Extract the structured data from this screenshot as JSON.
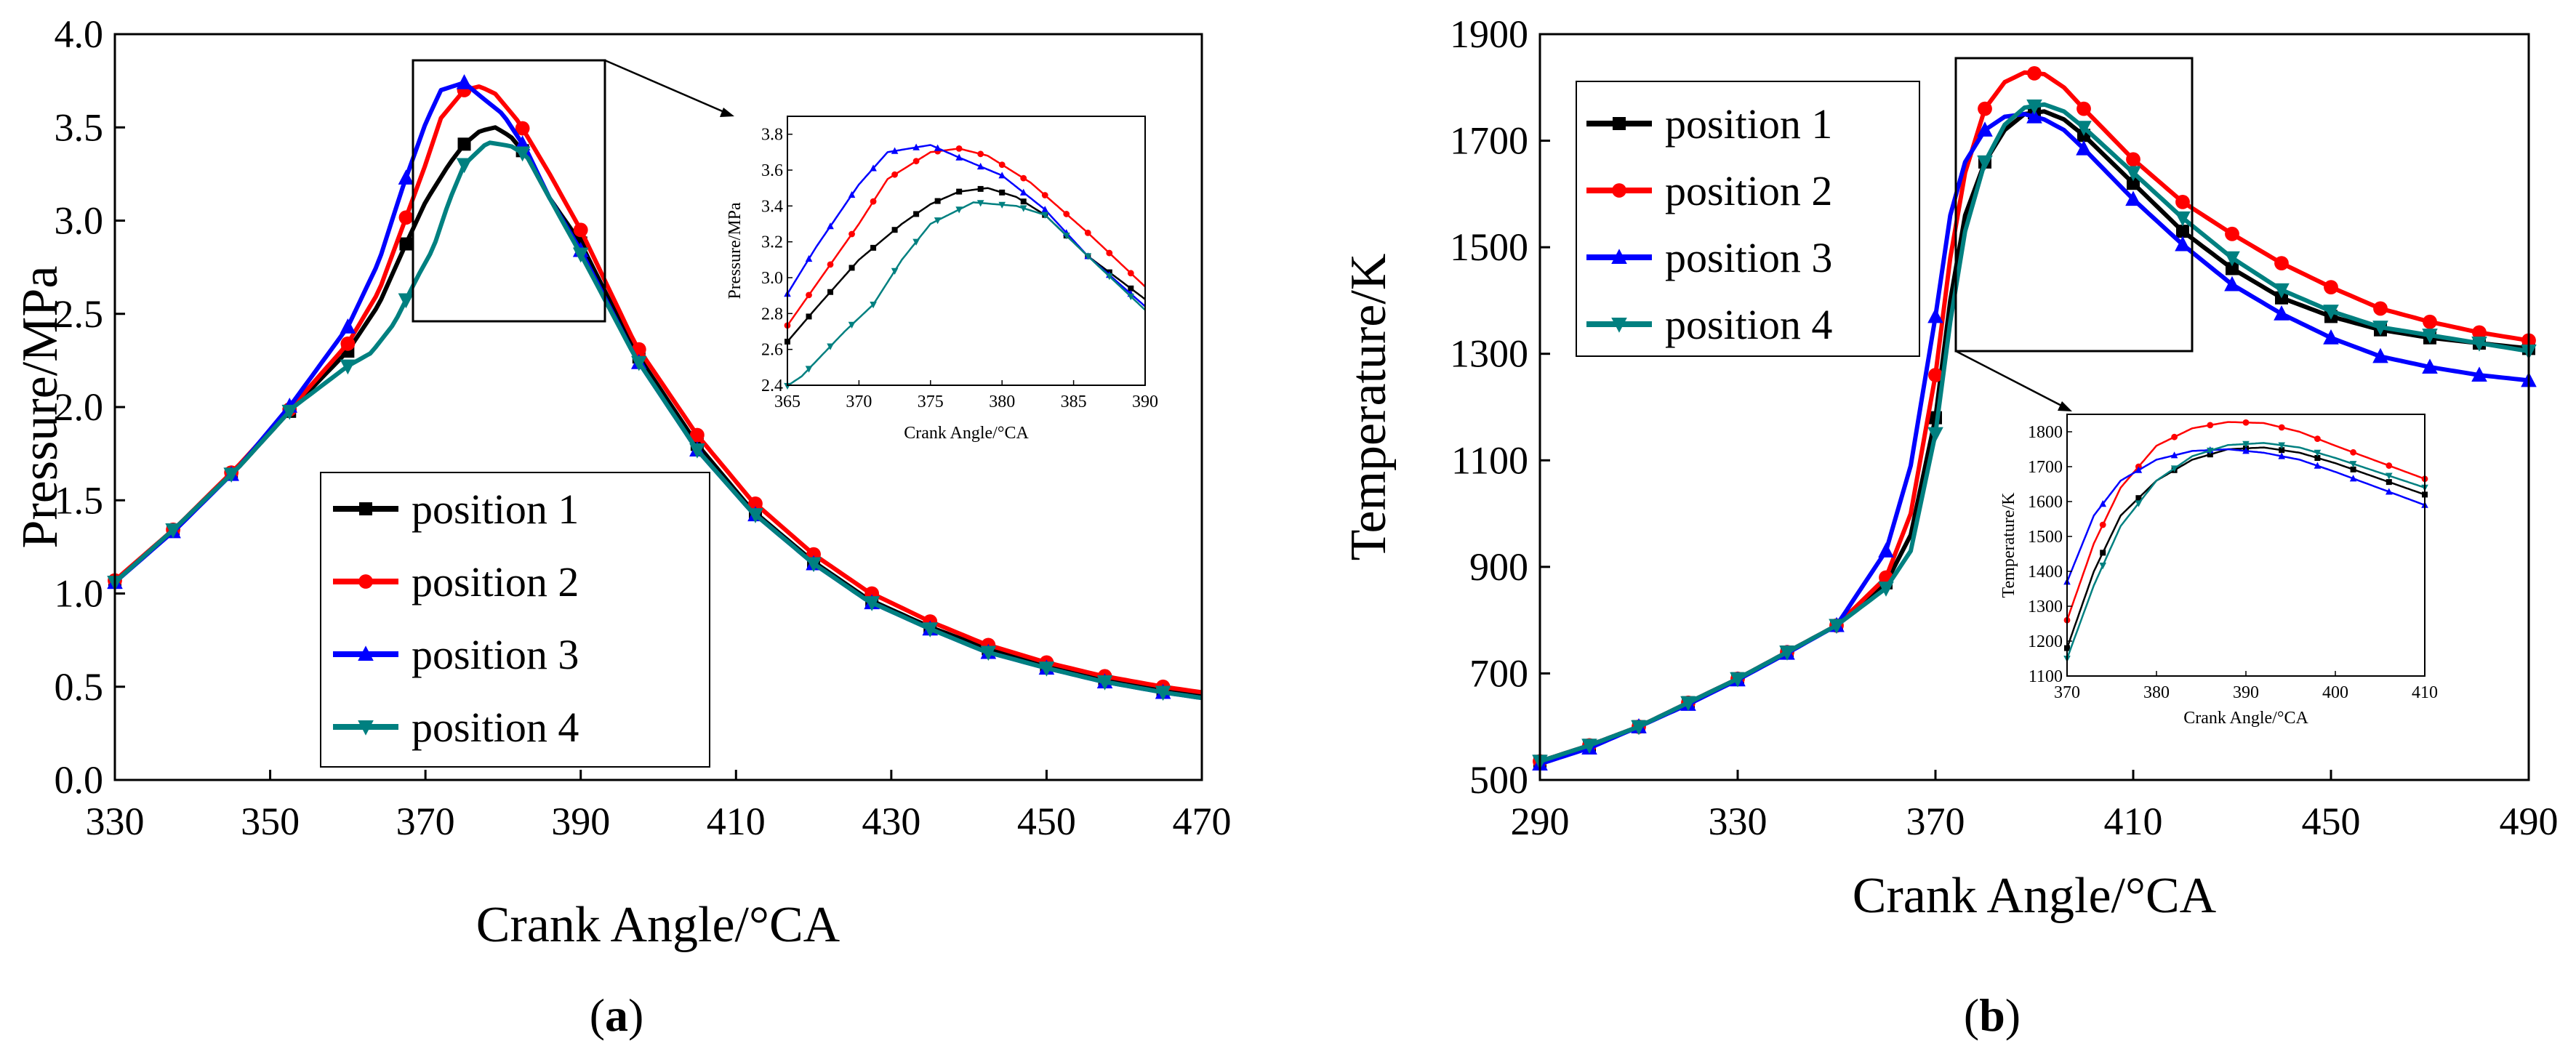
{
  "figure": {
    "caption_a": "(a)",
    "caption_b": "(b)",
    "caption_a_open": "(",
    "caption_a_letter": "a",
    "caption_a_close": ")",
    "caption_b_open": "(",
    "caption_b_letter": "b",
    "caption_b_close": ")"
  },
  "colors": {
    "position 1": "#000000",
    "position 2": "#ff0000",
    "position 3": "#0000ff",
    "position 4": "#008080"
  },
  "chart_data": [
    {
      "id": "a",
      "type": "line",
      "xlabel": "Crank Angle/°CA",
      "ylabel": "Pressure/MPa",
      "xlim": [
        330,
        470
      ],
      "ylim": [
        0,
        4
      ],
      "xticks": [
        "330",
        "350",
        "370",
        "390",
        "410",
        "430",
        "450",
        "470"
      ],
      "yticks": [
        "0.0",
        "0.5",
        "1.0",
        "1.5",
        "2.0",
        "2.5",
        "3.0",
        "3.5",
        "4.0"
      ],
      "legend_position": "lower-center",
      "series": [
        {
          "name": "position 1",
          "marker": "square",
          "x": [
            330,
            338,
            346,
            353,
            360,
            364,
            367,
            370,
            373,
            375,
            377,
            379,
            381,
            383,
            386,
            390,
            397,
            405,
            412,
            420,
            427,
            435,
            442,
            450,
            457,
            465,
            470
          ],
          "y": [
            1.06,
            1.36,
            1.68,
            2.0,
            2.3,
            2.55,
            2.83,
            3.1,
            3.3,
            3.41,
            3.48,
            3.5,
            3.45,
            3.35,
            3.12,
            2.88,
            2.3,
            1.8,
            1.45,
            1.17,
            0.97,
            0.82,
            0.71,
            0.61,
            0.54,
            0.48,
            0.45
          ]
        },
        {
          "name": "position 2",
          "marker": "circle",
          "x": [
            330,
            338,
            346,
            353,
            360,
            364,
            367,
            370,
            372,
            375,
            377,
            379,
            382,
            386,
            390,
            397,
            405,
            412,
            420,
            427,
            435,
            442,
            450,
            457,
            465,
            470
          ],
          "y": [
            1.07,
            1.36,
            1.69,
            2.01,
            2.34,
            2.62,
            2.96,
            3.3,
            3.55,
            3.7,
            3.72,
            3.68,
            3.53,
            3.25,
            2.95,
            2.34,
            1.85,
            1.5,
            1.21,
            1.01,
            0.85,
            0.73,
            0.63,
            0.56,
            0.5,
            0.47
          ]
        },
        {
          "name": "position 3",
          "marker": "triangle-up",
          "x": [
            330,
            338,
            346,
            353,
            360,
            364,
            367,
            370,
            372,
            375,
            377,
            380,
            383,
            386,
            390,
            397,
            405,
            412,
            420,
            427,
            435,
            442,
            450,
            457,
            465,
            470
          ],
          "y": [
            1.06,
            1.35,
            1.68,
            2.03,
            2.43,
            2.78,
            3.17,
            3.52,
            3.7,
            3.74,
            3.67,
            3.57,
            3.38,
            3.12,
            2.84,
            2.27,
            1.77,
            1.44,
            1.16,
            0.96,
            0.81,
            0.69,
            0.6,
            0.53,
            0.47,
            0.44
          ]
        },
        {
          "name": "position 4",
          "marker": "triangle-down",
          "x": [
            330,
            338,
            346,
            353,
            360,
            363,
            366,
            369,
            371,
            373,
            375,
            378,
            381,
            383,
            386,
            390,
            397,
            405,
            412,
            420,
            427,
            435,
            442,
            450,
            457,
            465,
            470
          ],
          "y": [
            1.06,
            1.36,
            1.68,
            2.0,
            2.22,
            2.29,
            2.45,
            2.7,
            2.85,
            3.1,
            3.3,
            3.42,
            3.4,
            3.35,
            3.12,
            2.82,
            2.27,
            1.77,
            1.44,
            1.16,
            0.96,
            0.81,
            0.69,
            0.6,
            0.53,
            0.47,
            0.44
          ]
        }
      ],
      "inset": {
        "xlabel": "Crank Angle/°CA",
        "ylabel": "Pressure/MPa",
        "xlim": [
          365,
          390
        ],
        "ylim": [
          2.4,
          3.9
        ],
        "xticks": [
          "365",
          "370",
          "375",
          "380",
          "385",
          "390"
        ],
        "yticks": [
          "2.4",
          "2.6",
          "2.8",
          "3.0",
          "3.2",
          "3.4",
          "3.6",
          "3.8"
        ]
      }
    },
    {
      "id": "b",
      "type": "line",
      "xlabel": "Crank Angle/°CA",
      "ylabel": "Temperature/K",
      "xlim": [
        290,
        490
      ],
      "ylim": [
        500,
        1900
      ],
      "xticks": [
        "290",
        "330",
        "370",
        "410",
        "450",
        "490"
      ],
      "yticks": [
        "500",
        "700",
        "900",
        "1100",
        "1300",
        "1500",
        "1700",
        "1900"
      ],
      "legend_position": "top-left",
      "series": [
        {
          "name": "position 1",
          "marker": "square",
          "x": [
            290,
            300,
            310,
            320,
            330,
            340,
            350,
            360,
            365,
            370,
            373,
            376,
            380,
            384,
            388,
            392,
            396,
            400,
            410,
            420,
            430,
            440,
            450,
            460,
            470,
            480,
            490
          ],
          "y": [
            535,
            565,
            600,
            645,
            690,
            740,
            790,
            870,
            960,
            1180,
            1400,
            1560,
            1660,
            1720,
            1750,
            1755,
            1740,
            1710,
            1620,
            1530,
            1460,
            1405,
            1370,
            1345,
            1330,
            1320,
            1310
          ]
        },
        {
          "name": "position 2",
          "marker": "circle",
          "x": [
            290,
            300,
            310,
            320,
            330,
            340,
            350,
            360,
            365,
            370,
            373,
            376,
            380,
            384,
            388,
            392,
            396,
            400,
            410,
            420,
            430,
            440,
            450,
            460,
            470,
            480,
            490
          ],
          "y": [
            535,
            565,
            600,
            645,
            690,
            740,
            790,
            880,
            1000,
            1260,
            1480,
            1640,
            1760,
            1810,
            1828,
            1825,
            1800,
            1760,
            1665,
            1585,
            1525,
            1470,
            1425,
            1385,
            1360,
            1340,
            1325
          ]
        },
        {
          "name": "position 3",
          "marker": "triangle-up",
          "x": [
            290,
            300,
            310,
            320,
            330,
            340,
            350,
            360,
            365,
            370,
            373,
            376,
            380,
            384,
            388,
            392,
            396,
            400,
            410,
            420,
            430,
            440,
            450,
            460,
            470,
            480,
            490
          ],
          "y": [
            530,
            560,
            600,
            642,
            688,
            738,
            790,
            930,
            1090,
            1370,
            1560,
            1660,
            1720,
            1745,
            1750,
            1740,
            1720,
            1685,
            1590,
            1505,
            1430,
            1375,
            1330,
            1295,
            1275,
            1260,
            1250
          ]
        },
        {
          "name": "position 4",
          "marker": "triangle-down",
          "x": [
            290,
            300,
            310,
            320,
            330,
            340,
            350,
            360,
            365,
            370,
            373,
            376,
            380,
            384,
            388,
            392,
            396,
            400,
            410,
            420,
            430,
            440,
            450,
            460,
            470,
            480,
            490
          ],
          "y": [
            535,
            565,
            600,
            645,
            690,
            740,
            790,
            860,
            930,
            1150,
            1360,
            1530,
            1660,
            1730,
            1762,
            1768,
            1755,
            1725,
            1640,
            1555,
            1480,
            1420,
            1380,
            1350,
            1335,
            1320,
            1305
          ]
        }
      ],
      "inset": {
        "xlabel": "Crank Angle/°CA",
        "ylabel": "Temperature/K",
        "xlim": [
          370,
          410
        ],
        "ylim": [
          1100,
          1850
        ],
        "xticks": [
          "370",
          "380",
          "390",
          "400",
          "410"
        ],
        "yticks": [
          "1100",
          "1200",
          "1300",
          "1400",
          "1500",
          "1600",
          "1700",
          "1800"
        ]
      }
    }
  ]
}
